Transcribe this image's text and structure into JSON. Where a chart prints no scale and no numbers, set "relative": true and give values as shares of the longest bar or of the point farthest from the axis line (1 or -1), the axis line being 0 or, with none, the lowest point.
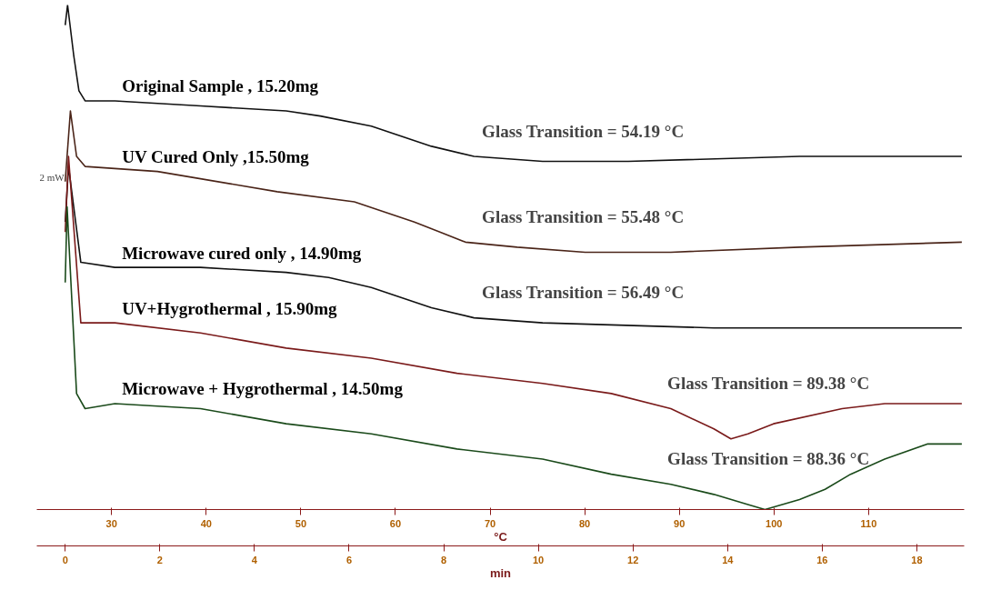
{
  "chart_data": {
    "type": "line",
    "relative": true,
    "xlabel": "min",
    "x2label": "°C",
    "xlim": [
      -0.6,
      19
    ],
    "xticks": [
      0,
      2,
      4,
      6,
      8,
      10,
      12,
      14,
      16,
      18
    ],
    "x2lim": [
      22.1,
      120.1
    ],
    "x2ticks": [
      30,
      40,
      50,
      60,
      70,
      80,
      90,
      100,
      110
    ],
    "grid": false,
    "marker": "none",
    "line_style": "solid",
    "series": [
      {
        "name": "Original Sample , 15.20mg",
        "color": "#111111",
        "x": [
          0,
          0.05,
          0.18,
          0.29,
          0.42,
          1.05,
          2.86,
          4.67,
          5.39,
          6.47,
          7.74,
          8.64,
          10.09,
          11.9,
          15.52,
          18.95
        ],
        "values": [
          0.96,
          1.0,
          0.9,
          0.83,
          0.81,
          0.81,
          0.8,
          0.79,
          0.78,
          0.76,
          0.72,
          0.7,
          0.69,
          0.69,
          0.7,
          0.7
        ]
      },
      {
        "name": "UV Cured Only ,15.50mg",
        "color": "#4a2418",
        "x": [
          0,
          0.11,
          0.24,
          0.42,
          1.95,
          4.48,
          6.11,
          7.38,
          8.46,
          9.55,
          10.99,
          12.8,
          15.52,
          18.95
        ],
        "values": [
          0.65,
          0.79,
          0.7,
          0.68,
          0.67,
          0.63,
          0.61,
          0.57,
          0.53,
          0.52,
          0.51,
          0.51,
          0.52,
          0.53
        ]
      },
      {
        "name": "Microwave cured only , 14.90mg",
        "color": "#111111",
        "x": [
          0,
          0.07,
          0.33,
          1.05,
          2.86,
          4.67,
          5.57,
          6.47,
          7.74,
          8.64,
          10.09,
          13.71,
          18.95
        ],
        "values": [
          0.57,
          0.68,
          0.49,
          0.48,
          0.48,
          0.47,
          0.46,
          0.44,
          0.4,
          0.38,
          0.37,
          0.36,
          0.36
        ]
      },
      {
        "name": "UV+Hygrothermal , 15.90mg",
        "color": "#7a1a1a",
        "x": [
          0,
          0.07,
          0.33,
          1.05,
          2.86,
          4.67,
          6.47,
          8.28,
          10.09,
          11.54,
          12.8,
          13.71,
          14.07,
          14.43,
          14.97,
          16.42,
          17.32,
          18.23,
          18.95
        ],
        "values": [
          0.55,
          0.7,
          0.37,
          0.37,
          0.35,
          0.32,
          0.3,
          0.27,
          0.25,
          0.23,
          0.2,
          0.16,
          0.14,
          0.15,
          0.17,
          0.2,
          0.21,
          0.21,
          0.21
        ]
      },
      {
        "name": "Microwave + Hygrothermal , 14.50mg",
        "color": "#1a4a1a",
        "x": [
          0,
          0.04,
          0.24,
          0.42,
          1.05,
          2.86,
          4.67,
          6.47,
          8.28,
          10.09,
          11.54,
          12.8,
          13.71,
          14.43,
          14.79,
          15.52,
          16.06,
          16.6,
          17.32,
          18.23,
          18.95
        ],
        "values": [
          0.45,
          0.6,
          0.23,
          0.2,
          0.21,
          0.2,
          0.17,
          0.15,
          0.12,
          0.1,
          0.07,
          0.05,
          0.03,
          0.01,
          0.0,
          0.02,
          0.04,
          0.07,
          0.1,
          0.13,
          0.13
        ]
      }
    ],
    "annotations": [
      "Glass Transition = 54.19 °C",
      "Glass Transition = 55.48 °C",
      "Glass Transition = 56.49 °C",
      "Glass Transition = 89.38 °C",
      "Glass Transition = 88.36 °C",
      "2 mW"
    ]
  }
}
